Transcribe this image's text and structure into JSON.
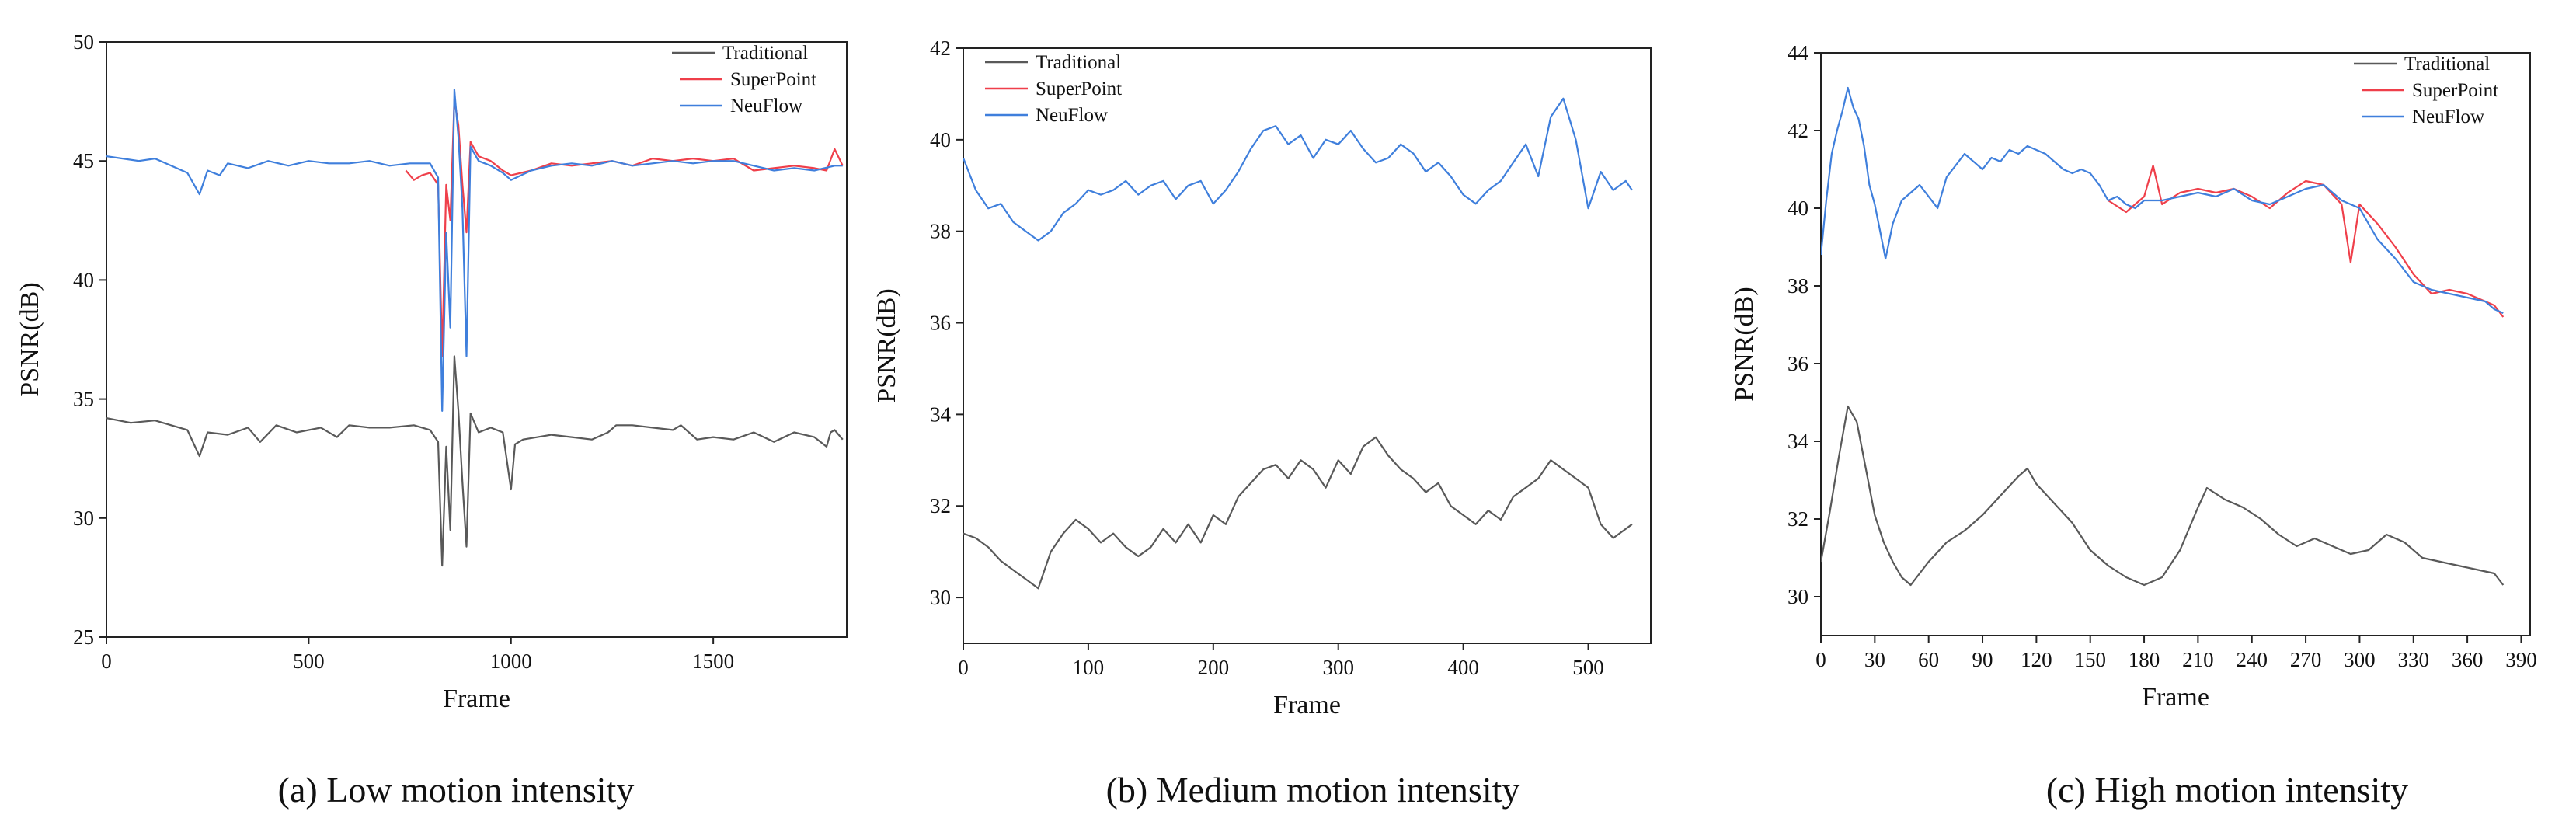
{
  "colors": {
    "traditional": "#595959",
    "superpoint": "#ef3f4a",
    "neuflow": "#3f7fdc",
    "axis": "#222222"
  },
  "chart_data": [
    {
      "type": "line",
      "panel": "a",
      "caption": "(a) Low motion intensity",
      "xlabel": "Frame",
      "ylabel": "PSNR(dB)",
      "xlim": [
        0,
        1830
      ],
      "ylim": [
        25,
        50
      ],
      "xticks": [
        0,
        500,
        1000,
        1500
      ],
      "yticks": [
        25,
        30,
        35,
        40,
        45,
        50
      ],
      "legend_position": "top-right",
      "series": [
        {
          "name": "Traditional",
          "key": "traditional",
          "x": [
            0,
            60,
            120,
            160,
            200,
            230,
            250,
            300,
            350,
            380,
            420,
            470,
            530,
            570,
            600,
            650,
            700,
            760,
            800,
            820,
            830,
            840,
            850,
            860,
            870,
            880,
            890,
            900,
            920,
            950,
            980,
            1000,
            1010,
            1030,
            1100,
            1150,
            1200,
            1240,
            1260,
            1300,
            1350,
            1400,
            1420,
            1460,
            1500,
            1550,
            1600,
            1650,
            1700,
            1750,
            1780,
            1790,
            1800,
            1820
          ],
          "values": [
            34.2,
            34.0,
            34.1,
            33.9,
            33.7,
            32.6,
            33.6,
            33.5,
            33.8,
            33.2,
            33.9,
            33.6,
            33.8,
            33.4,
            33.9,
            33.8,
            33.8,
            33.9,
            33.7,
            33.2,
            28.0,
            33.0,
            29.5,
            36.8,
            34.5,
            31.5,
            28.8,
            34.4,
            33.6,
            33.8,
            33.6,
            31.2,
            33.1,
            33.3,
            33.5,
            33.4,
            33.3,
            33.6,
            33.9,
            33.9,
            33.8,
            33.7,
            33.9,
            33.3,
            33.4,
            33.3,
            33.6,
            33.2,
            33.6,
            33.4,
            33.0,
            33.6,
            33.7,
            33.3
          ]
        },
        {
          "name": "SuperPoint",
          "key": "superpoint",
          "x": [
            740,
            760,
            780,
            800,
            820,
            830,
            840,
            850,
            860,
            870,
            880,
            890,
            900,
            920,
            950,
            980,
            1000,
            1050,
            1100,
            1150,
            1200,
            1250,
            1300,
            1350,
            1400,
            1450,
            1500,
            1550,
            1600,
            1650,
            1700,
            1750,
            1780,
            1800,
            1820
          ],
          "values": [
            44.6,
            44.2,
            44.4,
            44.5,
            44.0,
            36.8,
            44.0,
            42.5,
            47.6,
            46.5,
            44.0,
            42.0,
            45.8,
            45.2,
            45.0,
            44.6,
            44.4,
            44.6,
            44.9,
            44.8,
            44.9,
            45.0,
            44.8,
            45.1,
            45.0,
            45.1,
            45.0,
            45.1,
            44.6,
            44.7,
            44.8,
            44.7,
            44.6,
            45.5,
            44.8
          ]
        },
        {
          "name": "NeuFlow",
          "key": "neuflow",
          "x": [
            0,
            40,
            80,
            120,
            160,
            200,
            230,
            250,
            280,
            300,
            350,
            400,
            450,
            500,
            550,
            600,
            650,
            700,
            750,
            800,
            820,
            830,
            840,
            850,
            860,
            870,
            880,
            890,
            900,
            920,
            950,
            980,
            1000,
            1050,
            1100,
            1150,
            1200,
            1250,
            1300,
            1350,
            1400,
            1450,
            1500,
            1550,
            1600,
            1650,
            1700,
            1750,
            1800,
            1820
          ],
          "values": [
            45.2,
            45.1,
            45.0,
            45.1,
            44.8,
            44.5,
            43.6,
            44.6,
            44.4,
            44.9,
            44.7,
            45.0,
            44.8,
            45.0,
            44.9,
            44.9,
            45.0,
            44.8,
            44.9,
            44.9,
            44.3,
            34.5,
            42.0,
            38.0,
            48.0,
            46.0,
            43.0,
            36.8,
            45.6,
            45.0,
            44.8,
            44.5,
            44.2,
            44.6,
            44.8,
            44.9,
            44.8,
            45.0,
            44.8,
            44.9,
            45.0,
            44.9,
            45.0,
            45.0,
            44.8,
            44.6,
            44.7,
            44.6,
            44.8,
            44.8
          ]
        }
      ]
    },
    {
      "type": "line",
      "panel": "b",
      "caption": "(b) Medium motion intensity",
      "xlabel": "Frame",
      "ylabel": "PSNR(dB)",
      "xlim": [
        0,
        550
      ],
      "ylim": [
        29,
        42
      ],
      "xticks": [
        0,
        100,
        200,
        300,
        400,
        500
      ],
      "yticks": [
        30,
        32,
        34,
        36,
        38,
        40,
        42
      ],
      "legend_position": "top-left",
      "series": [
        {
          "name": "Traditional",
          "key": "traditional",
          "x": [
            0,
            10,
            20,
            30,
            40,
            50,
            60,
            70,
            80,
            90,
            100,
            110,
            120,
            130,
            140,
            150,
            160,
            170,
            180,
            190,
            200,
            210,
            220,
            230,
            240,
            250,
            260,
            270,
            280,
            290,
            300,
            310,
            320,
            330,
            340,
            350,
            360,
            370,
            380,
            390,
            400,
            410,
            420,
            430,
            440,
            450,
            460,
            470,
            480,
            490,
            500,
            510,
            520,
            530,
            535
          ],
          "values": [
            31.4,
            31.3,
            31.1,
            30.8,
            30.6,
            30.4,
            30.2,
            31.0,
            31.4,
            31.7,
            31.5,
            31.2,
            31.4,
            31.1,
            30.9,
            31.1,
            31.5,
            31.2,
            31.6,
            31.2,
            31.8,
            31.6,
            32.2,
            32.5,
            32.8,
            32.9,
            32.6,
            33.0,
            32.8,
            32.4,
            33.0,
            32.7,
            33.3,
            33.5,
            33.1,
            32.8,
            32.6,
            32.3,
            32.5,
            32.0,
            31.8,
            31.6,
            31.9,
            31.7,
            32.2,
            32.4,
            32.6,
            33.0,
            32.8,
            32.6,
            32.4,
            31.6,
            31.3,
            31.5,
            31.6
          ]
        },
        {
          "name": "SuperPoint",
          "key": "superpoint",
          "x": [],
          "values": []
        },
        {
          "name": "NeuFlow",
          "key": "neuflow",
          "x": [
            0,
            10,
            20,
            30,
            40,
            50,
            60,
            70,
            80,
            90,
            100,
            110,
            120,
            130,
            140,
            150,
            160,
            170,
            180,
            190,
            200,
            210,
            220,
            230,
            240,
            250,
            260,
            270,
            280,
            290,
            300,
            310,
            320,
            330,
            340,
            350,
            360,
            370,
            380,
            390,
            400,
            410,
            420,
            430,
            440,
            450,
            460,
            470,
            480,
            490,
            500,
            510,
            520,
            530,
            535
          ],
          "values": [
            39.6,
            38.9,
            38.5,
            38.6,
            38.2,
            38.0,
            37.8,
            38.0,
            38.4,
            38.6,
            38.9,
            38.8,
            38.9,
            39.1,
            38.8,
            39.0,
            39.1,
            38.7,
            39.0,
            39.1,
            38.6,
            38.9,
            39.3,
            39.8,
            40.2,
            40.3,
            39.9,
            40.1,
            39.6,
            40.0,
            39.9,
            40.2,
            39.8,
            39.5,
            39.6,
            39.9,
            39.7,
            39.3,
            39.5,
            39.2,
            38.8,
            38.6,
            38.9,
            39.1,
            39.5,
            39.9,
            39.2,
            40.5,
            40.9,
            40.0,
            38.5,
            39.3,
            38.9,
            39.1,
            38.9
          ]
        }
      ]
    },
    {
      "type": "line",
      "panel": "c",
      "caption": "(c) High motion intensity",
      "xlabel": "Frame",
      "ylabel": "PSNR(dB)",
      "xlim": [
        0,
        395
      ],
      "ylim": [
        29,
        44
      ],
      "xticks": [
        0,
        30,
        60,
        90,
        120,
        150,
        180,
        210,
        240,
        270,
        300,
        330,
        360,
        390
      ],
      "yticks": [
        30,
        32,
        34,
        36,
        38,
        40,
        42,
        44
      ],
      "legend_position": "top-right",
      "series": [
        {
          "name": "Traditional",
          "key": "traditional",
          "x": [
            0,
            5,
            10,
            15,
            20,
            25,
            30,
            35,
            40,
            45,
            50,
            55,
            60,
            70,
            80,
            90,
            100,
            110,
            115,
            120,
            130,
            140,
            150,
            160,
            170,
            180,
            190,
            200,
            210,
            215,
            225,
            235,
            245,
            255,
            265,
            275,
            285,
            295,
            305,
            315,
            325,
            335,
            345,
            355,
            365,
            375,
            380
          ],
          "values": [
            30.9,
            32.2,
            33.6,
            34.9,
            34.5,
            33.3,
            32.1,
            31.4,
            30.9,
            30.5,
            30.3,
            30.6,
            30.9,
            31.4,
            31.7,
            32.1,
            32.6,
            33.1,
            33.3,
            32.9,
            32.4,
            31.9,
            31.2,
            30.8,
            30.5,
            30.3,
            30.5,
            31.2,
            32.3,
            32.8,
            32.5,
            32.3,
            32.0,
            31.6,
            31.3,
            31.5,
            31.3,
            31.1,
            31.2,
            31.6,
            31.4,
            31.0,
            30.9,
            30.8,
            30.7,
            30.6,
            30.3
          ]
        },
        {
          "name": "SuperPoint",
          "key": "superpoint",
          "x": [
            160,
            170,
            180,
            185,
            190,
            200,
            210,
            220,
            230,
            240,
            250,
            260,
            270,
            280,
            290,
            295,
            300,
            310,
            320,
            330,
            340,
            350,
            360,
            370,
            375,
            380
          ],
          "values": [
            40.2,
            39.9,
            40.3,
            41.1,
            40.1,
            40.4,
            40.5,
            40.4,
            40.5,
            40.3,
            40.0,
            40.4,
            40.7,
            40.6,
            40.1,
            38.6,
            40.1,
            39.6,
            39.0,
            38.3,
            37.8,
            37.9,
            37.8,
            37.6,
            37.5,
            37.2
          ]
        },
        {
          "name": "NeuFlow",
          "key": "neuflow",
          "x": [
            0,
            3,
            6,
            9,
            12,
            15,
            18,
            21,
            24,
            27,
            30,
            33,
            36,
            40,
            45,
            50,
            55,
            60,
            65,
            70,
            75,
            80,
            85,
            90,
            95,
            100,
            105,
            110,
            115,
            120,
            125,
            130,
            135,
            140,
            145,
            150,
            155,
            160,
            165,
            170,
            175,
            180,
            190,
            200,
            210,
            220,
            230,
            240,
            250,
            260,
            270,
            280,
            290,
            300,
            310,
            320,
            330,
            340,
            350,
            360,
            370,
            375,
            380
          ],
          "values": [
            38.8,
            40.2,
            41.4,
            42.0,
            42.5,
            43.1,
            42.6,
            42.3,
            41.6,
            40.6,
            40.1,
            39.4,
            38.7,
            39.6,
            40.2,
            40.4,
            40.6,
            40.3,
            40.0,
            40.8,
            41.1,
            41.4,
            41.2,
            41.0,
            41.3,
            41.2,
            41.5,
            41.4,
            41.6,
            41.5,
            41.4,
            41.2,
            41.0,
            40.9,
            41.0,
            40.9,
            40.6,
            40.2,
            40.3,
            40.1,
            40.0,
            40.2,
            40.2,
            40.3,
            40.4,
            40.3,
            40.5,
            40.2,
            40.1,
            40.3,
            40.5,
            40.6,
            40.2,
            40.0,
            39.2,
            38.7,
            38.1,
            37.9,
            37.8,
            37.7,
            37.6,
            37.4,
            37.3
          ]
        }
      ]
    }
  ]
}
